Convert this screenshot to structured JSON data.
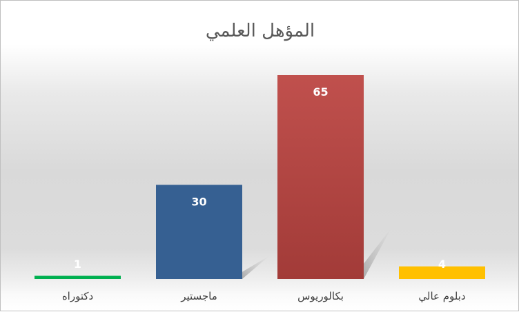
{
  "chart_data": {
    "type": "bar",
    "title": "المؤهل العلمي",
    "categories": [
      "دكتوراه",
      "ماجستير",
      "بكالوريوس",
      "دبلوم عالي"
    ],
    "values": [
      1,
      30,
      65,
      4
    ],
    "colors": [
      "#00B050",
      "#366092",
      "#B84A47",
      "#FFC000"
    ],
    "data_labels": [
      "1",
      "30",
      "65",
      "4"
    ],
    "xlabel": "",
    "ylabel": "",
    "ylim": [
      0,
      65
    ],
    "grid": false,
    "legend": "none"
  }
}
